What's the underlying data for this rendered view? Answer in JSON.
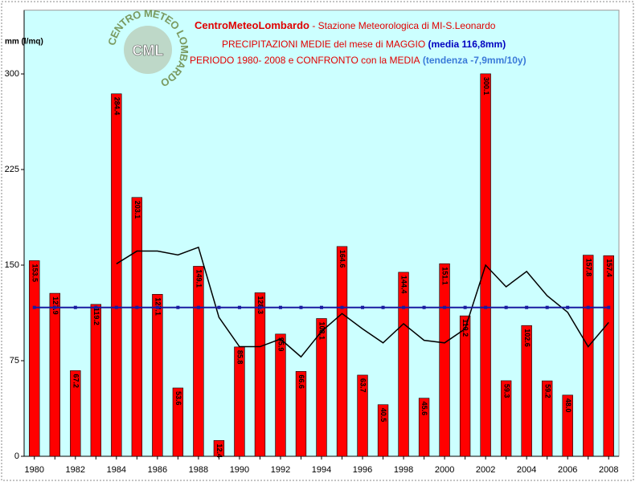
{
  "chart_data": {
    "type": "bar",
    "title": "CentroMeteoLombardo",
    "title_station": " - Stazione Meteorologica di MI-S.Leonardo",
    "subtitle": "PRECIPITAZIONI MEDIE del mese di MAGGIO",
    "subtitle_mean": " (media 116,8mm)",
    "subtitle2": "PERIODO 1980- 2008 e CONFRONTO con la MEDIA",
    "subtitle2_trend": " (tendenza -7,9mm/10y)",
    "y_label": "mm (l/mq)",
    "logo": {
      "ring": "CENTRO METEO LOMBARDO",
      "center": "CML"
    },
    "categories": [
      "1980",
      null,
      "1982",
      null,
      "1984",
      null,
      "1986",
      null,
      "1988",
      null,
      "1990",
      null,
      "1992",
      null,
      "1994",
      null,
      "1996",
      null,
      "1998",
      null,
      "2000",
      null,
      "2002",
      null,
      "2004",
      null,
      "2006",
      null,
      "2008"
    ],
    "values": [
      153.5,
      127.9,
      67.2,
      119.2,
      284.4,
      203.1,
      127.1,
      53.6,
      149.1,
      12.4,
      85.8,
      128.3,
      95.9,
      66.6,
      108.1,
      164.6,
      63.7,
      40.5,
      144.4,
      45.6,
      151.1,
      110.2,
      300.1,
      59.3,
      102.6,
      59.2,
      48.0,
      157.8,
      157.4
    ],
    "value_labels": [
      "153.5",
      "127.9",
      "67.2",
      "119.2",
      "284.4",
      "203.1",
      "127.1",
      "53.6",
      "149.1",
      "12.4",
      "85.8",
      "128.3",
      "95.9",
      "66.6",
      "108.1",
      "164.6",
      "63.7",
      "40.5",
      "144.4",
      "45.6",
      "151.1",
      "110.2",
      "300.1",
      "59.3",
      "102.6",
      "59.2",
      "48.0",
      "157.8",
      "157.4"
    ],
    "color": "#ff0000",
    "lines": [
      {
        "color": "#000000",
        "values": [
          null,
          null,
          null,
          null,
          151,
          161,
          161,
          158,
          164,
          109,
          86,
          86,
          92,
          78,
          98,
          112,
          100,
          89,
          104,
          91,
          89,
          100,
          150,
          133,
          145,
          126,
          113,
          86,
          105
        ]
      },
      {
        "color": "#1a1aa0",
        "values": [
          116.8,
          116.8,
          116.8,
          116.8,
          116.8,
          116.8,
          116.8,
          116.8,
          116.8,
          116.8,
          116.8,
          116.8,
          116.8,
          116.8,
          116.8,
          116.8,
          116.8,
          116.8,
          116.8,
          116.8,
          116.8,
          116.8,
          116.8,
          116.8,
          116.8,
          116.8,
          116.8,
          116.8,
          116.8
        ]
      }
    ],
    "ylim": [
      0,
      350
    ],
    "yticks": [
      0,
      75,
      150,
      225,
      300
    ],
    "grid": false
  }
}
